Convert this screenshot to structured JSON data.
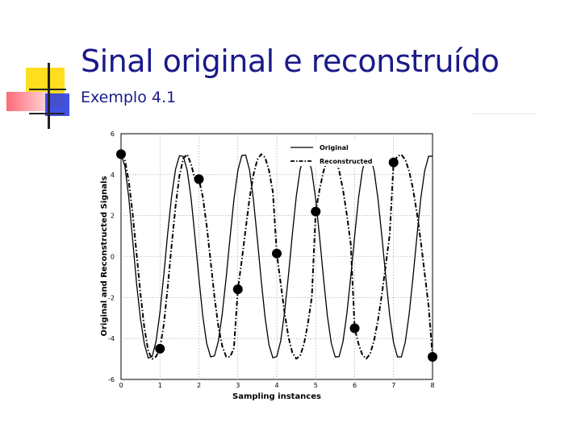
{
  "slide": {
    "title": "Sinal original e reconstruído",
    "subtitle": "Exemplo 4.1"
  },
  "chart_data": {
    "type": "line",
    "xlabel": "Sampling instances",
    "ylabel": "Original and Reconstructed Signals",
    "xlim": [
      0,
      8
    ],
    "ylim": [
      -6,
      6
    ],
    "xticks": [
      0,
      1,
      2,
      3,
      4,
      5,
      6,
      7,
      8
    ],
    "yticks": [
      6,
      4,
      2,
      0,
      -2,
      -4,
      -6
    ],
    "grid": true,
    "legend_position": "top-right",
    "series": [
      {
        "name": "Original",
        "style": "solid",
        "x": [
          0,
          0.1,
          0.2,
          0.3,
          0.4,
          0.5,
          0.6,
          0.7,
          0.8,
          0.9,
          1.0,
          1.1,
          1.2,
          1.3,
          1.4,
          1.5,
          1.6,
          1.7,
          1.8,
          1.9,
          2.0,
          2.1,
          2.2,
          2.3,
          2.4,
          2.5,
          2.6,
          2.7,
          2.8,
          2.9,
          3.0,
          3.1,
          3.2,
          3.3,
          3.4,
          3.5,
          3.6,
          3.7,
          3.8,
          3.9,
          4.0,
          4.1,
          4.2,
          4.3,
          4.4,
          4.5,
          4.6,
          4.7,
          4.8,
          4.9,
          5.0,
          5.1,
          5.2,
          5.3,
          5.4,
          5.5,
          5.6,
          5.7,
          5.8,
          5.9,
          6.0,
          6.1,
          6.2,
          6.3,
          6.4,
          6.5,
          6.6,
          6.7,
          6.8,
          6.9,
          7.0,
          7.1,
          7.2,
          7.3,
          7.4,
          7.5,
          7.6,
          7.7,
          7.8,
          7.9,
          8.0
        ],
        "values": [
          5.0,
          4.41,
          2.86,
          0.78,
          -1.34,
          -3.06,
          -4.28,
          -4.96,
          -4.88,
          -4.13,
          -2.72,
          -0.85,
          1.16,
          2.96,
          4.26,
          4.93,
          4.89,
          4.2,
          2.83,
          0.94,
          -1.05,
          -2.91,
          -4.24,
          -4.9,
          -4.85,
          -4.13,
          -2.79,
          -1.03,
          0.93,
          2.79,
          4.2,
          4.93,
          4.96,
          4.23,
          2.79,
          0.87,
          -1.16,
          -2.98,
          -4.31,
          -4.95,
          -4.88,
          -4.13,
          -2.72,
          -0.92,
          1.09,
          2.93,
          4.25,
          4.93,
          4.91,
          4.17,
          2.79,
          0.94,
          -1.05,
          -2.91,
          -4.23,
          -4.9,
          -4.89,
          -4.16,
          -2.79,
          -0.98,
          0.99,
          2.86,
          4.22,
          4.92,
          4.91,
          4.19,
          2.81,
          0.97,
          -1.01,
          -2.87,
          -4.21,
          -4.9,
          -4.9,
          -4.18,
          -2.81,
          -0.98,
          1.0,
          2.86,
          4.2,
          4.9,
          4.9
        ]
      },
      {
        "name": "Reconstructed",
        "style": "dash-dot",
        "x": [
          0,
          0.1,
          0.2,
          0.3,
          0.4,
          0.5,
          0.6,
          0.7,
          0.8,
          0.9,
          1.0,
          1.1,
          1.2,
          1.3,
          1.4,
          1.5,
          1.6,
          1.7,
          1.8,
          1.9,
          2.0,
          2.1,
          2.2,
          2.3,
          2.4,
          2.5,
          2.6,
          2.7,
          2.8,
          2.9,
          3.0,
          3.1,
          3.2,
          3.3,
          3.4,
          3.5,
          3.6,
          3.7,
          3.8,
          3.9,
          4.0,
          4.1,
          4.2,
          4.3,
          4.4,
          4.5,
          4.6,
          4.7,
          4.8,
          4.9,
          5.0,
          5.1,
          5.2,
          5.3,
          5.4,
          5.5,
          5.6,
          5.7,
          5.8,
          5.9,
          6.0,
          6.1,
          6.2,
          6.3,
          6.4,
          6.5,
          6.6,
          6.7,
          6.8,
          6.9,
          7.0,
          7.1,
          7.2,
          7.3,
          7.4,
          7.5,
          7.6,
          7.7,
          7.8,
          7.9,
          8.0
        ],
        "values": [
          5.0,
          4.7,
          3.66,
          2.06,
          0.12,
          -1.84,
          -3.5,
          -4.62,
          -5.0,
          -4.88,
          -4.5,
          -3.29,
          -1.47,
          0.56,
          2.46,
          3.95,
          4.8,
          4.99,
          4.5,
          3.78,
          3.78,
          2.91,
          1.51,
          -0.22,
          -1.97,
          -3.42,
          -4.38,
          -4.89,
          -4.9,
          -4.47,
          -1.6,
          -0.2,
          1.34,
          2.83,
          4.0,
          4.73,
          5.0,
          4.84,
          4.21,
          3.15,
          0.15,
          -1.3,
          -2.74,
          -3.93,
          -4.7,
          -4.99,
          -4.85,
          -4.26,
          -3.27,
          -1.98,
          2.2,
          3.28,
          4.16,
          4.78,
          5.0,
          4.82,
          4.21,
          3.27,
          2.04,
          0.62,
          -3.5,
          -4.27,
          -4.81,
          -4.99,
          -4.74,
          -4.09,
          -3.1,
          -1.83,
          -0.4,
          1.07,
          4.6,
          4.9,
          4.98,
          4.73,
          4.17,
          3.29,
          2.12,
          0.72,
          -0.85,
          -2.42,
          -4.9
        ]
      }
    ],
    "samples": {
      "x": [
        0,
        1,
        2,
        3,
        4,
        5,
        6,
        7,
        8
      ],
      "values": [
        5.0,
        -4.5,
        3.78,
        -1.6,
        0.15,
        2.2,
        -3.5,
        4.6,
        -4.9
      ]
    }
  }
}
